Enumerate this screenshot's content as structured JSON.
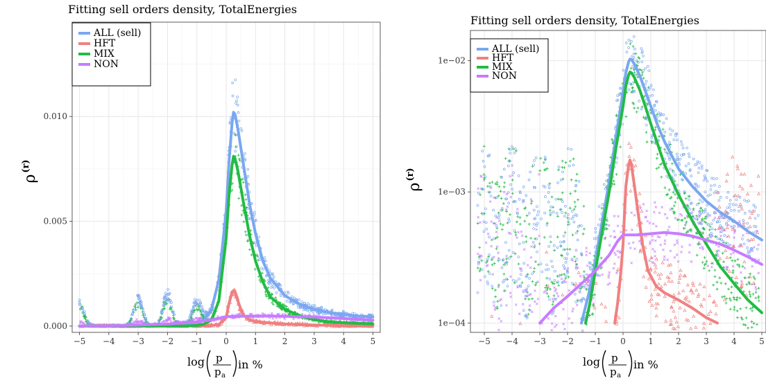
{
  "chart_data": [
    {
      "type": "scatter",
      "title": "Fitting sell orders density, TotalEnergies",
      "xlabel_main": "log",
      "xlabel_frac_num": "p",
      "xlabel_frac_den": "p",
      "xlabel_frac_den_sub": "a",
      "xlabel_unit": "in %",
      "ylabel": "ρ",
      "ylabel_sup": "(r)",
      "y_scale": "linear",
      "xlim": [
        -5.25,
        5.25
      ],
      "ylim": [
        -0.0003,
        0.0145
      ],
      "x_ticks": [
        -5,
        -4,
        -3,
        -2,
        -1,
        0,
        1,
        2,
        3,
        4,
        5
      ],
      "x_tick_labels": [
        "−5",
        "−4",
        "−3",
        "−2",
        "−1",
        "0",
        "1",
        "2",
        "3",
        "4",
        "5"
      ],
      "y_ticks": [
        0.0,
        0.005,
        0.01
      ],
      "y_tick_labels": [
        "0.000",
        "0.005",
        "0.010"
      ],
      "grid": true,
      "legend_position": "top-left",
      "series": [
        {
          "name": "ALL (sell)",
          "color": "#7aa7f0",
          "marker": "circle",
          "fit_x": [
            -5,
            -4,
            -3,
            -2,
            -1.5,
            -1,
            -0.75,
            -0.5,
            -0.25,
            0,
            0.1,
            0.2,
            0.25,
            0.3,
            0.4,
            0.6,
            0.8,
            1,
            1.25,
            1.5,
            2,
            2.5,
            3,
            3.5,
            4,
            4.5,
            5
          ],
          "fit_y": [
            0.0,
            0.0,
            0.0,
            0.0,
            2e-05,
            0.0001,
            0.0003,
            0.0008,
            0.0022,
            0.0055,
            0.0079,
            0.0097,
            0.0102,
            0.0101,
            0.0094,
            0.0076,
            0.0058,
            0.0044,
            0.0031,
            0.0023,
            0.00145,
            0.00105,
            0.0008,
            0.00065,
            0.00055,
            0.00048,
            0.00043
          ]
        },
        {
          "name": "HFT",
          "color": "#f08080",
          "marker": "triangle",
          "fit_x": [
            -5,
            -2,
            -1,
            -0.5,
            -0.25,
            0,
            0.1,
            0.2,
            0.25,
            0.3,
            0.4,
            0.5,
            0.6,
            0.8,
            1,
            1.5,
            2,
            3,
            4,
            5
          ],
          "fit_y": [
            0.0,
            0.0,
            1e-05,
            3e-05,
            8e-05,
            0.0004,
            0.0011,
            0.0016,
            0.0017,
            0.0016,
            0.0012,
            0.0008,
            0.0005,
            0.0003,
            0.00022,
            0.00015,
            0.0001,
            5e-05,
            2e-05,
            1e-05
          ]
        },
        {
          "name": "MIX",
          "color": "#22bb44",
          "marker": "plus",
          "fit_x": [
            -5,
            -3,
            -1.5,
            -1,
            -0.75,
            -0.5,
            -0.25,
            0,
            0.1,
            0.2,
            0.25,
            0.3,
            0.4,
            0.6,
            0.8,
            1,
            1.25,
            1.5,
            2,
            2.5,
            3,
            3.5,
            4,
            4.5,
            5
          ],
          "fit_y": [
            0.0,
            0.0,
            0.0,
            3e-05,
            0.0001,
            0.0003,
            0.0012,
            0.0042,
            0.0063,
            0.0077,
            0.0081,
            0.008,
            0.0074,
            0.0058,
            0.0043,
            0.0031,
            0.0021,
            0.0014,
            0.0008,
            0.0005,
            0.0003,
            0.0002,
            0.00016,
            0.00013,
            0.0001
          ]
        },
        {
          "name": "NON",
          "color": "#c77cff",
          "marker": "cross",
          "fit_x": [
            -5,
            -4,
            -3,
            -2,
            -1,
            -0.5,
            0,
            0.5,
            1,
            1.5,
            2,
            3,
            4,
            5
          ],
          "fit_y": [
            0.0,
            1e-05,
            5e-05,
            0.0001,
            0.0002,
            0.0003,
            0.00045,
            0.00047,
            0.00048,
            0.00048,
            0.00047,
            0.00043,
            0.00036,
            0.00028
          ]
        }
      ],
      "peaks": [
        [
          -5,
          0.0011
        ],
        [
          -3,
          0.0013
        ],
        [
          -2,
          0.0015
        ],
        [
          -1,
          0.0011
        ]
      ]
    },
    {
      "type": "scatter",
      "title": "Fitting sell orders density, TotalEnergies",
      "xlabel_main": "log",
      "xlabel_frac_num": "p",
      "xlabel_frac_den": "p",
      "xlabel_frac_den_sub": "a",
      "xlabel_unit": "in %",
      "ylabel": "ρ",
      "ylabel_sup": "(r)",
      "y_scale": "log",
      "xlim": [
        -5.5,
        5.15
      ],
      "ylim": [
        8.5e-05,
        0.017
      ],
      "x_ticks": [
        -5,
        -4,
        -3,
        -2,
        -1,
        0,
        1,
        2,
        3,
        4,
        5
      ],
      "x_tick_labels": [
        "−5",
        "−4",
        "−3",
        "−2",
        "−1",
        "0",
        "1",
        "2",
        "3",
        "4",
        "5"
      ],
      "y_ticks": [
        0.0001,
        0.001,
        0.01
      ],
      "y_tick_labels": [
        "1e−04",
        "1e−03",
        "1e−02"
      ],
      "grid": true,
      "legend_position": "top-left",
      "series": [
        {
          "name": "ALL (sell)",
          "color": "#7aa7f0",
          "marker": "circle",
          "fit_x": [
            -1.5,
            -1.2,
            -1,
            -0.75,
            -0.5,
            -0.25,
            0,
            0.1,
            0.2,
            0.25,
            0.3,
            0.4,
            0.6,
            0.8,
            1,
            1.25,
            1.5,
            2,
            2.5,
            3,
            3.5,
            4,
            4.5,
            5
          ],
          "fit_y": [
            0.0001,
            0.00018,
            0.0003,
            0.0006,
            0.0012,
            0.0027,
            0.0058,
            0.0081,
            0.0098,
            0.0103,
            0.0102,
            0.0095,
            0.0077,
            0.0059,
            0.0045,
            0.0032,
            0.0024,
            0.0015,
            0.0011,
            0.00085,
            0.0007,
            0.0006,
            0.0005,
            0.00043
          ]
        },
        {
          "name": "HFT",
          "color": "#f08080",
          "marker": "triangle",
          "fit_x": [
            -0.3,
            -0.2,
            -0.1,
            0,
            0.1,
            0.2,
            0.25,
            0.3,
            0.4,
            0.5,
            0.7,
            0.9,
            1.2,
            1.5,
            2,
            2.5,
            3,
            3.4
          ],
          "fit_y": [
            0.0001,
            0.00014,
            0.00022,
            0.0004,
            0.0011,
            0.0016,
            0.00175,
            0.0016,
            0.00115,
            0.0008,
            0.0004,
            0.00025,
            0.00019,
            0.00017,
            0.00015,
            0.00013,
            0.00011,
            0.0001
          ]
        },
        {
          "name": "MIX",
          "color": "#22bb44",
          "marker": "plus",
          "fit_x": [
            -1.35,
            -1.2,
            -1,
            -0.75,
            -0.5,
            -0.25,
            0,
            0.1,
            0.2,
            0.25,
            0.3,
            0.4,
            0.6,
            0.8,
            1,
            1.25,
            1.5,
            2,
            2.5,
            3,
            3.5,
            4,
            4.5,
            5
          ],
          "fit_y": [
            0.0001,
            0.00014,
            0.00025,
            0.0005,
            0.001,
            0.0022,
            0.0045,
            0.0064,
            0.0078,
            0.0082,
            0.0081,
            0.0075,
            0.006,
            0.0045,
            0.0033,
            0.0023,
            0.0016,
            0.00095,
            0.0006,
            0.0004,
            0.00027,
            0.0002,
            0.00015,
            0.00012
          ]
        },
        {
          "name": "NON",
          "color": "#c77cff",
          "marker": "cross",
          "fit_x": [
            -3,
            -2.5,
            -2,
            -1.5,
            -1,
            -0.5,
            -0.2,
            0,
            0.5,
            1,
            1.5,
            2,
            2.5,
            3,
            3.5,
            4,
            4.5,
            5
          ],
          "fit_y": [
            0.0001,
            0.00013,
            0.00016,
            0.0002,
            0.00025,
            0.00033,
            0.00042,
            0.00047,
            0.00047,
            0.00048,
            0.00049,
            0.00048,
            0.00046,
            0.00043,
            0.0004,
            0.00036,
            0.00032,
            0.00028
          ]
        }
      ]
    }
  ]
}
